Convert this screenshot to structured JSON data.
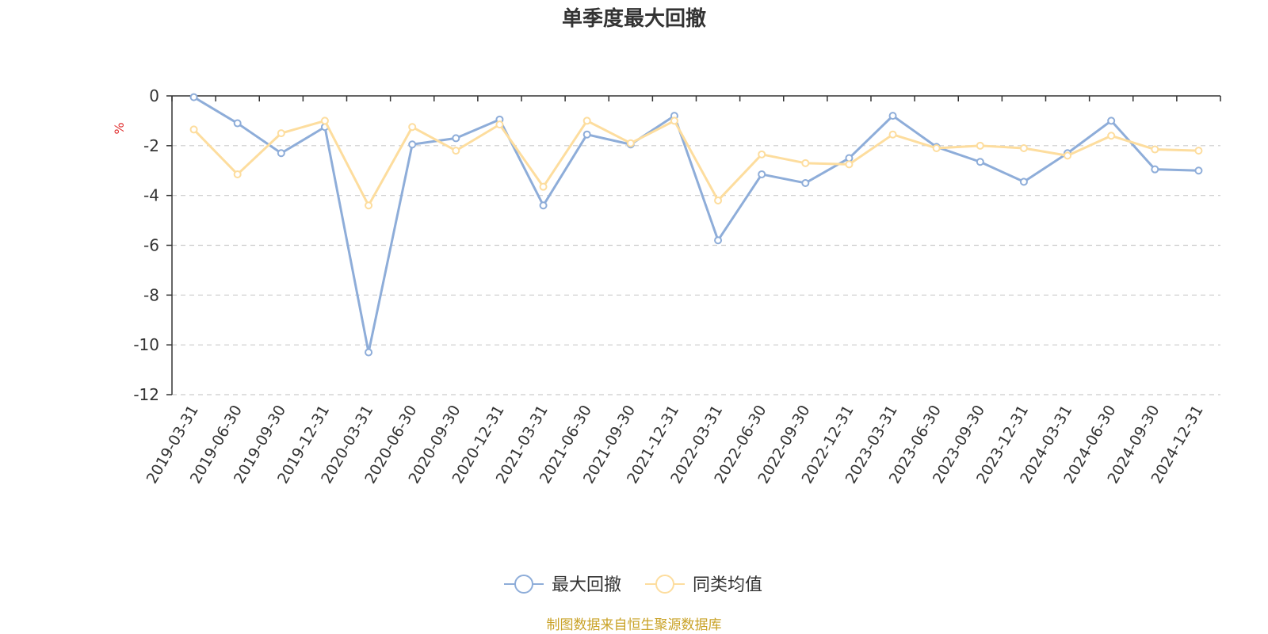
{
  "chart_data": {
    "type": "line",
    "title": "单季度最大回撤",
    "ylabel": "%",
    "ylim": [
      -12,
      0
    ],
    "yticks": [
      0,
      -2,
      -4,
      -6,
      -8,
      -10,
      -12
    ],
    "grid": true,
    "legend_position": "bottom-center",
    "categories": [
      "2019-03-31",
      "2019-06-30",
      "2019-09-30",
      "2019-12-31",
      "2020-03-31",
      "2020-06-30",
      "2020-09-30",
      "2020-12-31",
      "2021-03-31",
      "2021-06-30",
      "2021-09-30",
      "2021-12-31",
      "2022-03-31",
      "2022-06-30",
      "2022-09-30",
      "2022-12-31",
      "2023-03-31",
      "2023-06-30",
      "2023-09-30",
      "2023-12-31",
      "2024-03-31",
      "2024-06-30",
      "2024-09-30",
      "2024-12-31"
    ],
    "series": [
      {
        "name": "最大回撤",
        "color": "#8eadd9",
        "values": [
          -0.05,
          -1.1,
          -2.3,
          -1.25,
          -10.3,
          -1.95,
          -1.7,
          -0.95,
          -4.4,
          -1.55,
          -1.95,
          -0.8,
          -5.8,
          -3.15,
          -3.5,
          -2.5,
          -0.8,
          -2.05,
          -2.65,
          -3.45,
          -2.3,
          -1.0,
          -2.95,
          -3.0
        ]
      },
      {
        "name": "同类均值",
        "color": "#fddd9e",
        "values": [
          -1.35,
          -3.15,
          -1.5,
          -1.0,
          -4.4,
          -1.25,
          -2.2,
          -1.15,
          -3.65,
          -1.0,
          -1.9,
          -1.0,
          -4.2,
          -2.35,
          -2.7,
          -2.75,
          -1.55,
          -2.1,
          -2.0,
          -2.1,
          -2.4,
          -1.6,
          -2.15,
          -2.2
        ]
      }
    ],
    "source": "制图数据来自恒生聚源数据库",
    "source_color": "#c9a227",
    "unit_color": "#e03030"
  }
}
